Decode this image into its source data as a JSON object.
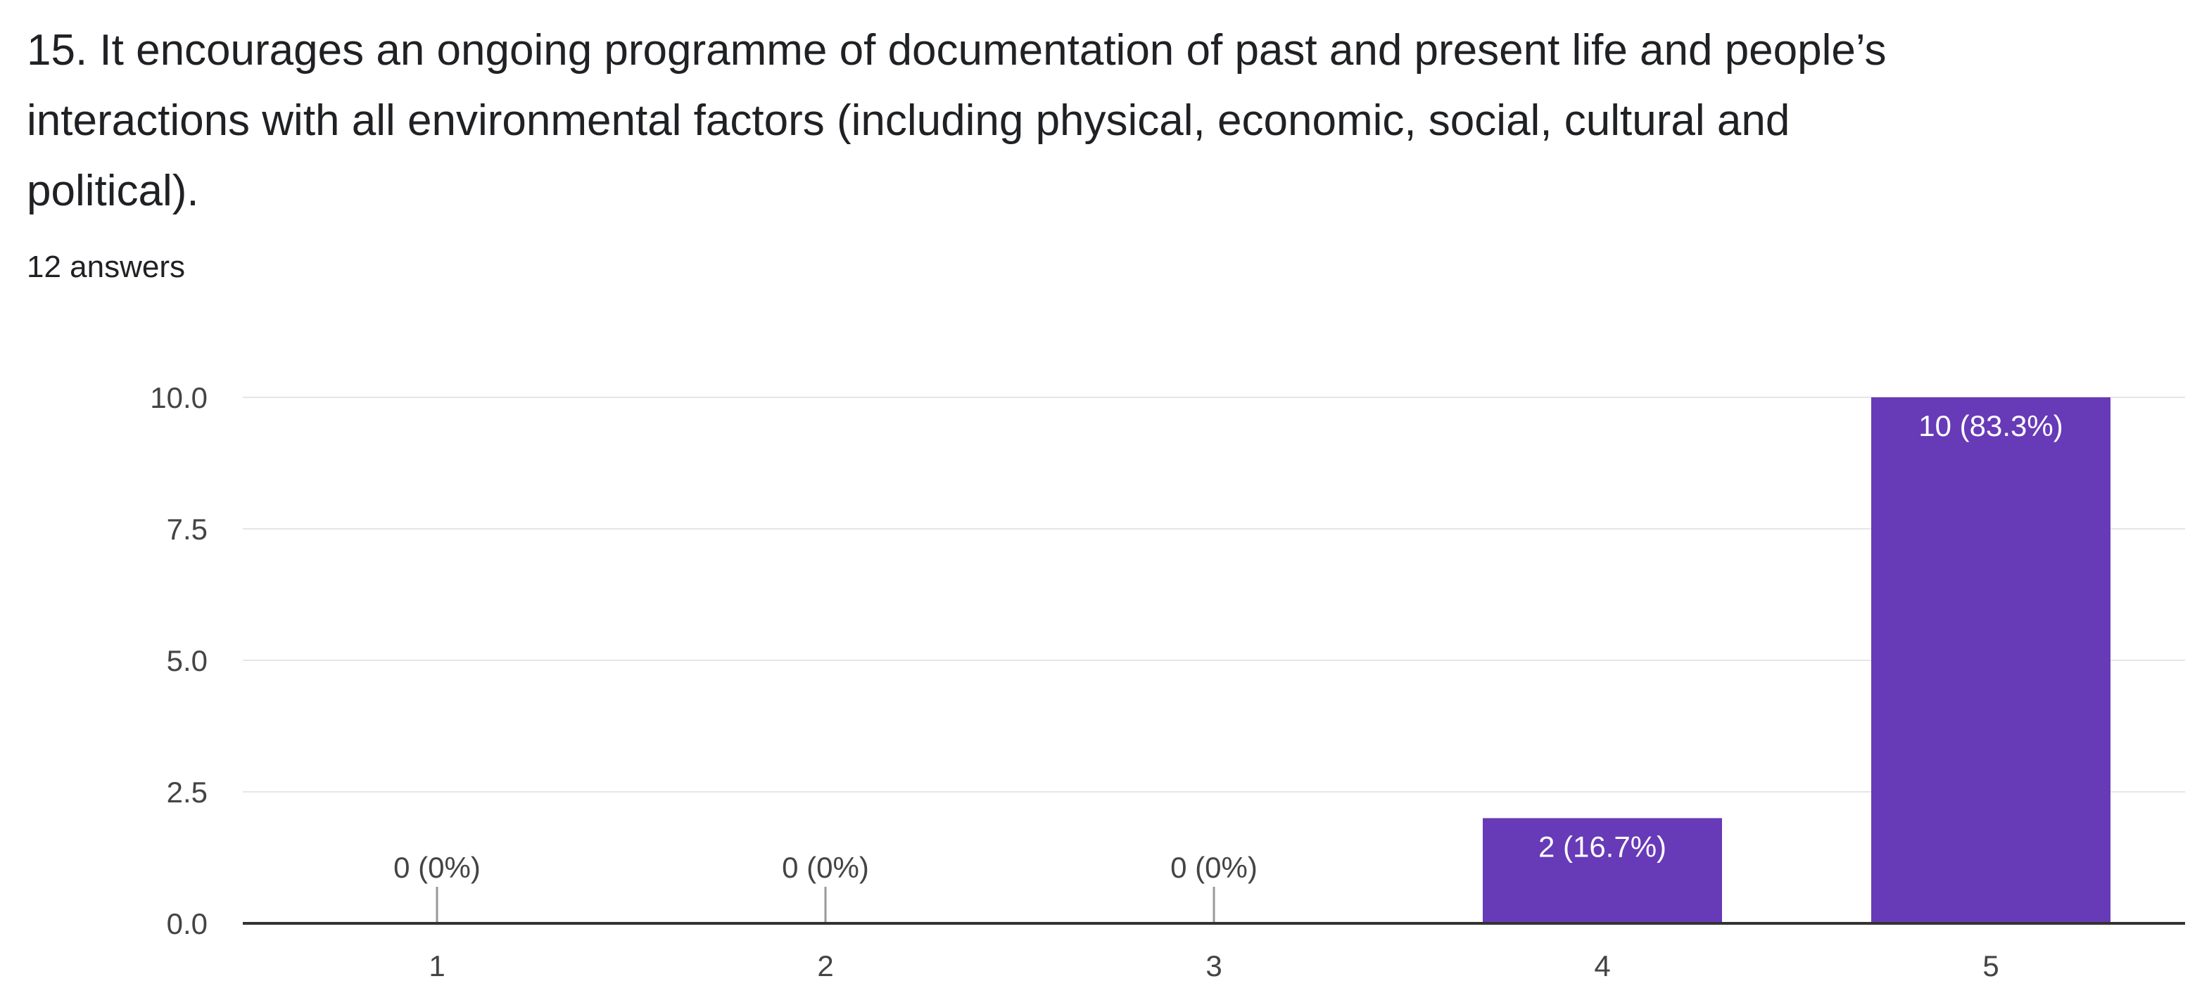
{
  "question": {
    "title": "15. It encourages an ongoing programme of documentation of past and present life and people’s interactions with all environmental factors (including physical, economic, social, cultural and political).",
    "answers_count": "12 answers"
  },
  "colors": {
    "bar": "#673ab7",
    "label_on_bar": "#ffffff",
    "label_outside": "#444444",
    "gridline": "#e6e6e6",
    "axis": "#333333"
  },
  "chart_data": {
    "type": "bar",
    "title": "",
    "xlabel": "",
    "ylabel": "",
    "categories": [
      "1",
      "2",
      "3",
      "4",
      "5"
    ],
    "values": [
      0,
      0,
      0,
      2,
      10
    ],
    "data_labels": [
      "0 (0%)",
      "0 (0%)",
      "0 (0%)",
      "2 (16.7%)",
      "10 (83.3%)"
    ],
    "ylim": [
      0,
      10
    ],
    "yticks": [
      "0.0",
      "2.5",
      "5.0",
      "7.5",
      "10.0"
    ],
    "grid": true,
    "legend": "none"
  }
}
